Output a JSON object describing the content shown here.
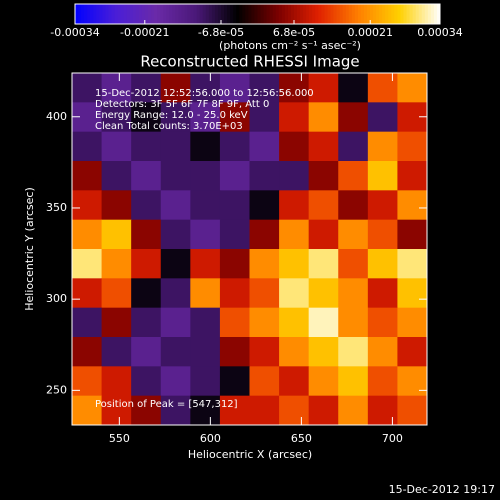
{
  "chart_data": {
    "type": "heatmap",
    "title": "Reconstructed RHESSI Image",
    "xlabel": "Heliocentric X (arcsec)",
    "ylabel": "Heliocentric Y (arcsec)",
    "colorbar_label": "(photons cm⁻² s⁻¹ asec⁻²)",
    "annotations": [
      "15-Dec-2012 12:52:56.000 to 12:56:56.000",
      "Detectors: 3F 5F 6F 7F 8F 9F, Att 0",
      "Energy Range: 12.0 - 25.0 keV",
      "Clean     Total counts: 3.70E+03"
    ],
    "peak_label": "Position of Peak = [547,312]",
    "footer": "15-Dec-2012 19:17",
    "xlim": [
      524,
      719
    ],
    "xticks": [
      550,
      600,
      650,
      700
    ],
    "ylim": [
      231,
      424
    ],
    "yticks": [
      250,
      300,
      350,
      400
    ],
    "zlim": [
      -0.00034,
      0.00034
    ],
    "zticks": [
      -0.00034,
      -0.00021,
      {
        "value": -6.8e-05,
        "label": "-6.8e-05"
      },
      {
        "value": 6.8e-05,
        "label": "6.8e-05"
      },
      0.00021,
      0.00034
    ],
    "colorscale": [
      "#0000ff",
      "#4a1ed8",
      "#6a2aa8",
      "#4a1878",
      "#000000",
      "#7a0000",
      "#e02000",
      "#ff8000",
      "#ffd000",
      "#ffffff"
    ],
    "z": [
      [
        -0.0001,
        -0.00015,
        -0.0001,
        5e-05,
        -0.0001,
        -0.00015,
        -0.0001,
        5e-05,
        0.0001,
        -5e-05,
        0.00015,
        0.0002
      ],
      [
        -0.00015,
        -0.0001,
        -5e-05,
        -0.0001,
        -0.00015,
        5e-05,
        -0.0001,
        0.0001,
        0.0002,
        5e-05,
        -0.0001,
        0.0001
      ],
      [
        -0.0001,
        -0.00015,
        -0.0001,
        -0.0001,
        -5e-05,
        -0.0001,
        -0.00015,
        5e-05,
        0.0001,
        -0.0001,
        0.0002,
        0.00015
      ],
      [
        5e-05,
        -0.0001,
        -0.00015,
        -0.0001,
        -0.0001,
        -0.00015,
        -0.0001,
        -0.0001,
        5e-05,
        0.00015,
        0.00025,
        0.0001
      ],
      [
        0.0001,
        5e-05,
        -0.0001,
        -0.00015,
        -0.0001,
        -0.0001,
        -5e-05,
        0.0001,
        0.00015,
        5e-05,
        0.0001,
        0.0002
      ],
      [
        0.0002,
        0.00025,
        5e-05,
        -0.0001,
        -0.00015,
        -0.0001,
        5e-05,
        0.0002,
        0.0001,
        0.0002,
        0.00015,
        5e-05
      ],
      [
        0.0003,
        0.0002,
        0.0001,
        -5e-05,
        0.0001,
        5e-05,
        0.0002,
        0.00025,
        0.0003,
        0.00015,
        0.00025,
        0.0003
      ],
      [
        0.0001,
        0.00015,
        -5e-05,
        -0.0001,
        0.0002,
        0.0001,
        0.00015,
        0.0003,
        0.00025,
        0.0002,
        0.0001,
        0.00025
      ],
      [
        -0.0001,
        5e-05,
        -0.0001,
        -0.00015,
        -0.0001,
        0.00015,
        0.0002,
        0.00025,
        0.00032,
        0.0002,
        0.00015,
        0.0002
      ],
      [
        5e-05,
        -0.0001,
        -0.00015,
        -0.0001,
        -0.0001,
        5e-05,
        0.0001,
        0.0002,
        0.00025,
        0.0003,
        0.0002,
        0.0001
      ],
      [
        0.00015,
        0.0001,
        -0.0001,
        -0.00015,
        -0.0001,
        -5e-05,
        0.00015,
        0.0001,
        0.0002,
        0.00025,
        0.00015,
        0.0002
      ],
      [
        0.0002,
        0.0001,
        5e-05,
        -0.0001,
        -5e-05,
        0.0001,
        0.0001,
        0.00015,
        0.0001,
        0.0002,
        0.0001,
        0.00015
      ]
    ]
  }
}
